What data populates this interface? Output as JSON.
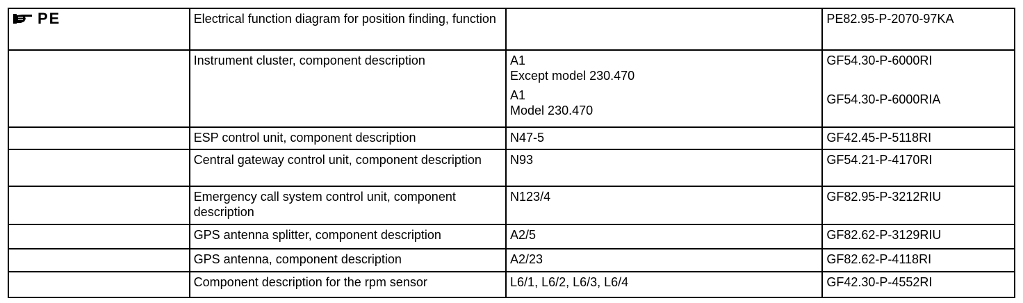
{
  "marker": {
    "icon": "pointing-hand-icon",
    "label": "PE"
  },
  "rows": [
    {
      "description": "Electrical function diagram for position finding, function",
      "entries": [
        {
          "component": [],
          "document": "PE82.95-P-2070-97KA"
        }
      ]
    },
    {
      "description": "Instrument cluster, component description",
      "entries": [
        {
          "component": [
            "A1",
            "Except model 230.470"
          ],
          "document": "GF54.30-P-6000RI"
        },
        {
          "component": [
            "A1",
            "Model 230.470"
          ],
          "document": "GF54.30-P-6000RIA"
        }
      ]
    },
    {
      "description": "ESP control unit, component description",
      "entries": [
        {
          "component": [
            "N47-5"
          ],
          "document": "GF42.45-P-5118RI"
        }
      ]
    },
    {
      "description": "Central gateway control unit, component description",
      "entries": [
        {
          "component": [
            "N93"
          ],
          "document": "GF54.21-P-4170RI"
        }
      ]
    },
    {
      "description": "Emergency call system control unit, component description",
      "entries": [
        {
          "component": [
            "N123/4"
          ],
          "document": "GF82.95-P-3212RIU"
        }
      ]
    },
    {
      "description": "GPS antenna splitter, component description",
      "entries": [
        {
          "component": [
            "A2/5"
          ],
          "document": "GF82.62-P-3129RIU"
        }
      ]
    },
    {
      "description": "GPS antenna, component description",
      "entries": [
        {
          "component": [
            "A2/23"
          ],
          "document": "GF82.62-P-4118RI"
        }
      ]
    },
    {
      "description": "Component description for the rpm sensor",
      "entries": [
        {
          "component": [
            "L6/1, L6/2, L6/3, L6/4"
          ],
          "document": "GF42.30-P-4552RI"
        }
      ]
    }
  ]
}
